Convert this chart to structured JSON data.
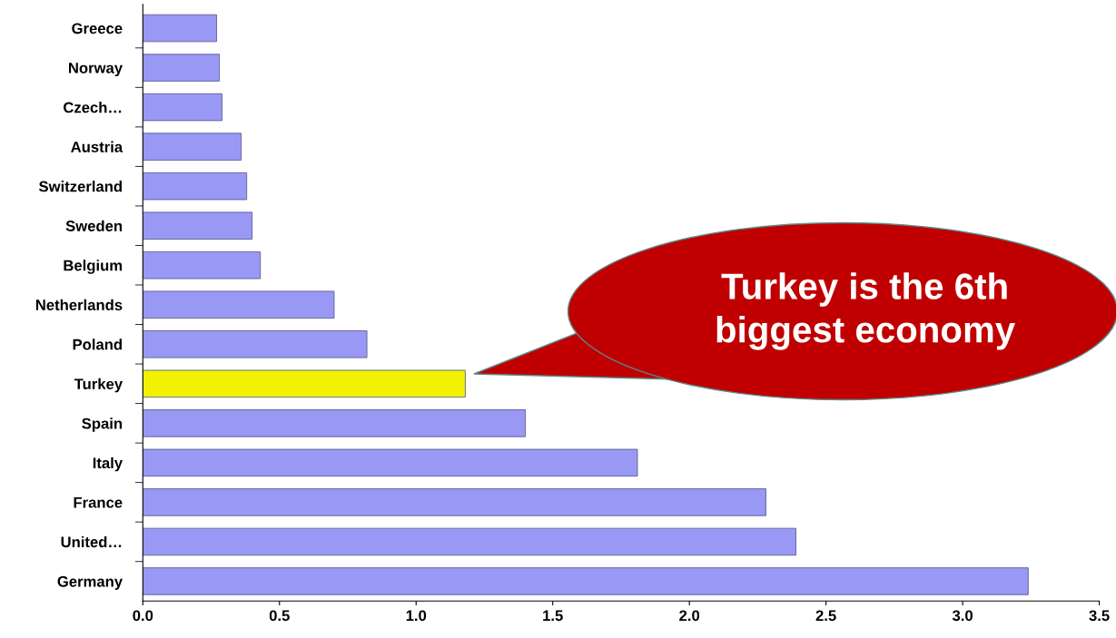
{
  "chart_data": {
    "type": "bar",
    "orientation": "horizontal",
    "categories": [
      "Greece",
      "Norway",
      "Czech…",
      "Austria",
      "Switzerland",
      "Sweden",
      "Belgium",
      "Netherlands",
      "Poland",
      "Turkey",
      "Spain",
      "Italy",
      "France",
      "United…",
      "Germany"
    ],
    "values": [
      0.27,
      0.28,
      0.29,
      0.36,
      0.38,
      0.4,
      0.43,
      0.7,
      0.82,
      1.18,
      1.4,
      1.81,
      2.28,
      2.39,
      3.24
    ],
    "colors": [
      "#9999f5",
      "#9999f5",
      "#9999f5",
      "#9999f5",
      "#9999f5",
      "#9999f5",
      "#9999f5",
      "#9999f5",
      "#9999f5",
      "#f2f200",
      "#9999f5",
      "#9999f5",
      "#9999f5",
      "#9999f5",
      "#9999f5"
    ],
    "xlim": [
      0,
      3.5
    ],
    "xticks": [
      {
        "value": 0,
        "label": "0.0"
      },
      0.5,
      {
        "value": 1,
        "label": "1.0"
      },
      1.5,
      {
        "value": 2,
        "label": "2.0"
      },
      2.5,
      {
        "value": 3,
        "label": "3.0"
      },
      3.5
    ],
    "grid": false,
    "annotations": [
      "Turkey is the 6th\nbiggest economy"
    ]
  }
}
